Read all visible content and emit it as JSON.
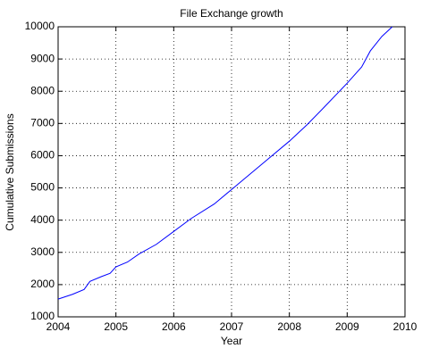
{
  "chart_data": {
    "type": "line",
    "title": "File Exchange growth",
    "x_label": "Year",
    "y_label": "Cumulative Submissions",
    "x": [
      2004.0,
      2004.25,
      2004.45,
      2004.55,
      2004.75,
      2004.9,
      2005.0,
      2005.2,
      2005.4,
      2005.7,
      2006.0,
      2006.3,
      2006.7,
      2007.0,
      2007.3,
      2007.6,
      2008.0,
      2008.3,
      2008.6,
      2009.0,
      2009.25,
      2009.4,
      2009.6,
      2009.78
    ],
    "values": [
      1550,
      1700,
      1850,
      2100,
      2250,
      2350,
      2550,
      2700,
      2950,
      3250,
      3650,
      4050,
      4500,
      4950,
      5400,
      5850,
      6450,
      6950,
      7500,
      8250,
      8750,
      9250,
      9700,
      10000
    ],
    "color": "#0000ff",
    "xlim": [
      2004,
      2010
    ],
    "xticks": [
      2004,
      2005,
      2006,
      2007,
      2008,
      2009,
      2010
    ],
    "ylim": [
      1000,
      10000
    ],
    "yticks": [
      1000,
      2000,
      3000,
      4000,
      5000,
      6000,
      7000,
      8000,
      9000,
      10000
    ],
    "grid": true
  }
}
